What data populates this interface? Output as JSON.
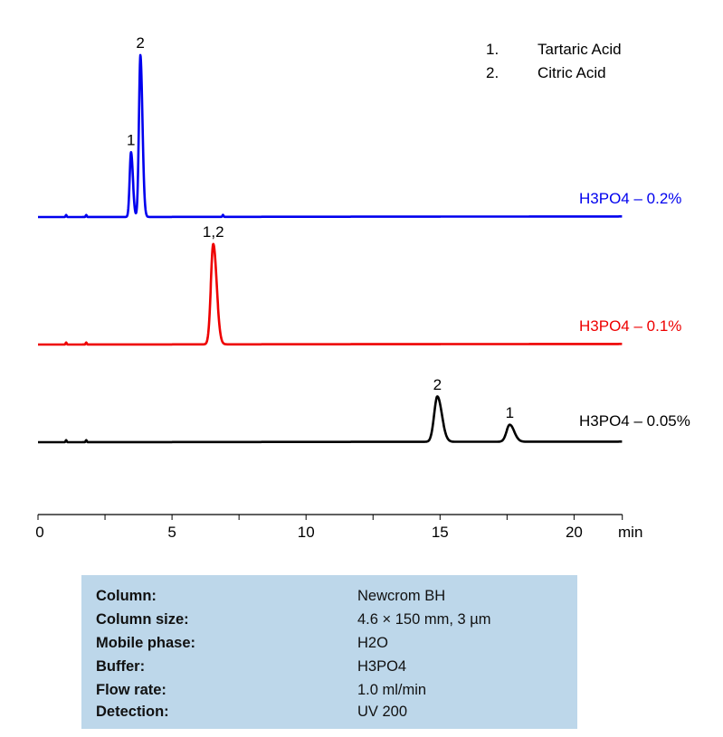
{
  "chart_data": {
    "type": "line",
    "xlabel": "min",
    "xlim": [
      0,
      21.8
    ],
    "xticks": [
      0,
      5,
      10,
      15,
      20
    ],
    "minor_xticks": [
      2.5,
      7.5,
      12.5,
      17.5
    ],
    "grid": false,
    "y_axis_shown": false,
    "legend": {
      "placement": "top-right",
      "entries": [
        {
          "num": "1.",
          "name": "Tartaric Acid"
        },
        {
          "num": "2.",
          "name": "Citric Acid"
        }
      ]
    },
    "series": [
      {
        "name": "H3PO4 – 0.2%",
        "color": "#0000ee",
        "peaks": [
          {
            "label": "1",
            "rt": 3.47,
            "height": 40,
            "width": 0.05
          },
          {
            "label": "2",
            "rt": 3.82,
            "height": 100,
            "width": 0.055
          }
        ],
        "minor_peaks": [
          1.05,
          1.8,
          6.9
        ]
      },
      {
        "name": "H3PO4 – 0.1%",
        "color": "#ee0000",
        "peaks": [
          {
            "label": "1,2",
            "rt": 6.54,
            "height": 62,
            "width": 0.09
          }
        ],
        "minor_peaks": [
          1.05,
          1.8
        ]
      },
      {
        "name": "H3PO4 – 0.05%",
        "color": "#000000",
        "peaks": [
          {
            "label": "2",
            "rt": 14.9,
            "height": 28,
            "width": 0.12
          },
          {
            "label": "1",
            "rt": 17.6,
            "height": 10.5,
            "width": 0.12
          }
        ],
        "minor_peaks": [
          1.05,
          1.8
        ]
      }
    ]
  },
  "conditions": [
    {
      "label": "Column:",
      "value": "Newcrom BH"
    },
    {
      "label": "Column size:",
      "value": "4.6 × 150 mm, 3 µm"
    },
    {
      "label": "Mobile phase:",
      "value": "H2O"
    },
    {
      "label": "Buffer:",
      "value": "H3PO4"
    },
    {
      "label": "Flow rate:",
      "value": "1.0  ml/min"
    },
    {
      "label": "Detection:",
      "value": "UV 200"
    }
  ]
}
